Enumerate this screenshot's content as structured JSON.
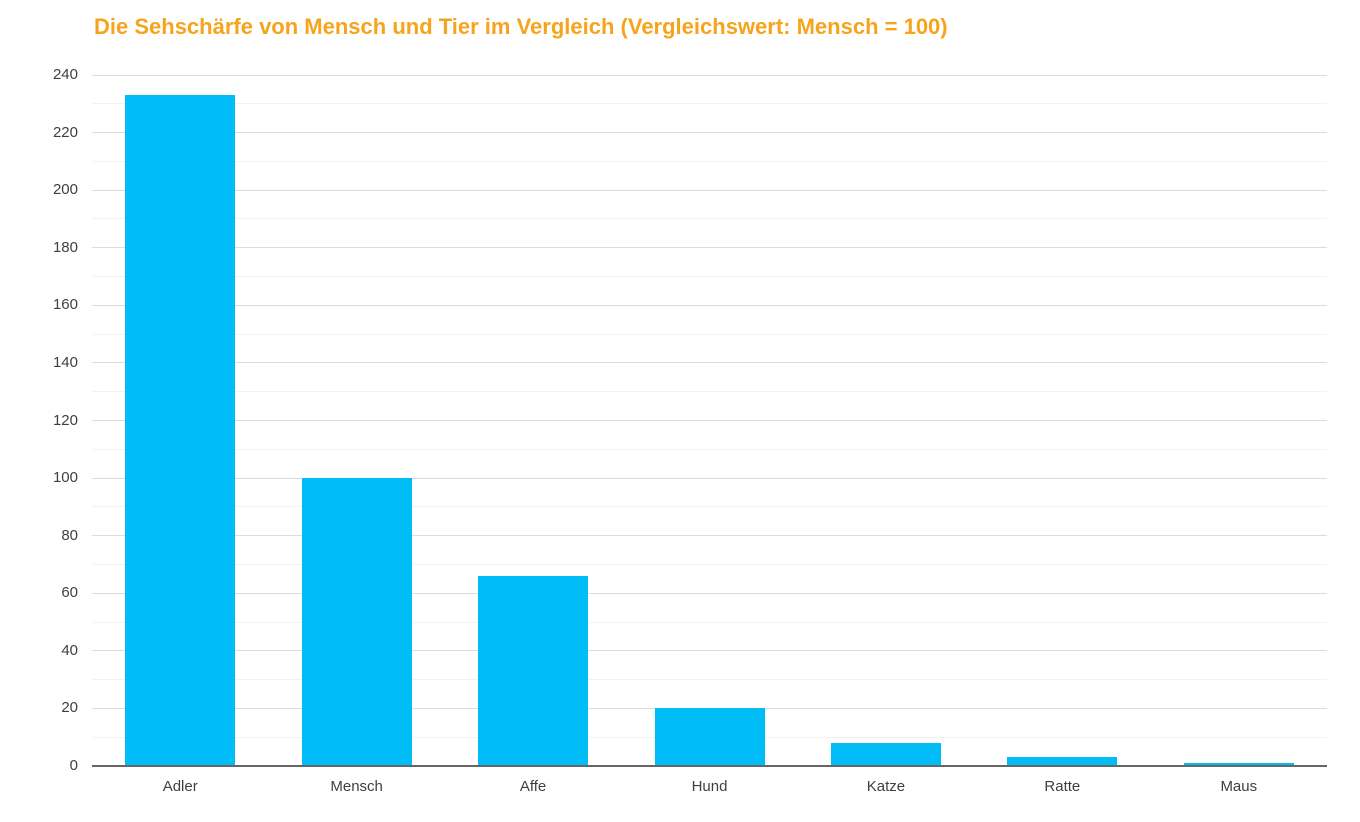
{
  "chart_data": {
    "type": "bar",
    "title": "Die Sehschärfe von Mensch und Tier im Vergleich (Vergleichswert: Mensch = 100)",
    "categories": [
      "Adler",
      "Mensch",
      "Affe",
      "Hund",
      "Katze",
      "Ratte",
      "Maus"
    ],
    "values": [
      233,
      100,
      66,
      20,
      8,
      3,
      1
    ],
    "xlabel": "",
    "ylabel": "",
    "ylim": [
      0,
      240
    ],
    "y_tick_step_major": 20,
    "y_tick_step_minor": 10,
    "y_tick_labels": [
      "0",
      "20",
      "40",
      "60",
      "80",
      "100",
      "120",
      "140",
      "160",
      "180",
      "200",
      "220",
      "240"
    ],
    "grid": "on",
    "legend": "none",
    "colors": {
      "bar": "#00BDF7",
      "title": "#F7A41D",
      "axis_label": "#3F3F3F",
      "gridline_major": "#DCDCDC",
      "gridline_minor": "#F2F2F2",
      "baseline": "#666666",
      "background": "#FFFFFF"
    }
  }
}
